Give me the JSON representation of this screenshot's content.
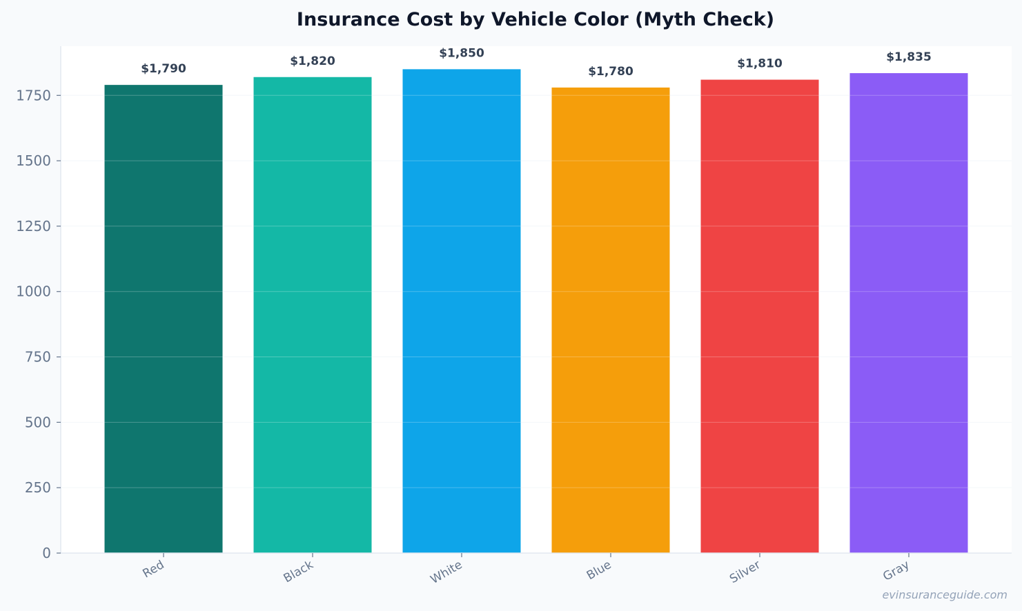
{
  "chart_data": {
    "type": "bar",
    "title": "Insurance Cost by Vehicle Color (Myth Check)",
    "xlabel": "",
    "ylabel": "",
    "categories": [
      "Red",
      "Black",
      "White",
      "Blue",
      "Silver",
      "Gray"
    ],
    "values": [
      1790,
      1820,
      1850,
      1780,
      1810,
      1835
    ],
    "data_labels": [
      "$1,790",
      "$1,820",
      "$1,850",
      "$1,780",
      "$1,810",
      "$1,835"
    ],
    "bar_colors": [
      "#0f766e",
      "#14b8a6",
      "#0ea5e9",
      "#f59e0b",
      "#ef4444",
      "#8b5cf6"
    ],
    "ylim": [
      0,
      1938
    ],
    "yticks": [
      0,
      250,
      500,
      750,
      1000,
      1250,
      1500,
      1750
    ],
    "grid": true,
    "legend": "none"
  },
  "watermark": "evinsuranceguide.com"
}
